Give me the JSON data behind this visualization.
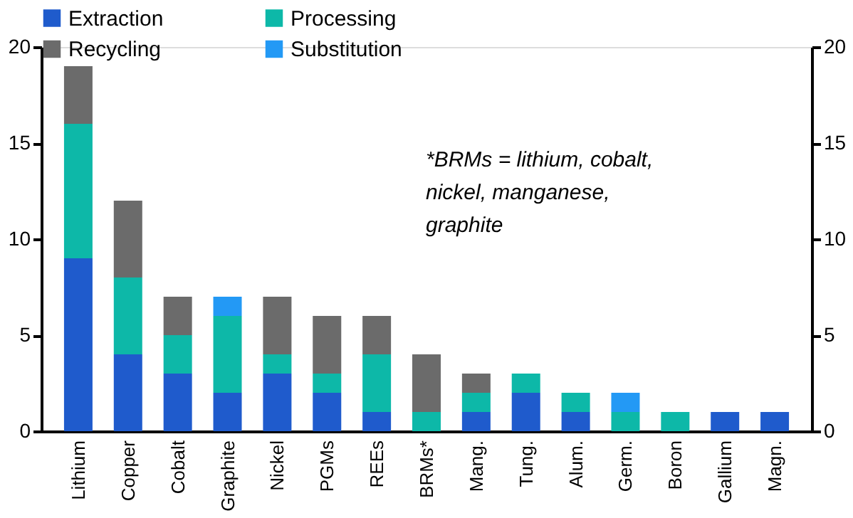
{
  "chart_data": {
    "type": "bar",
    "stacked": true,
    "categories": [
      "Lithium",
      "Copper",
      "Cobalt",
      "Graphite",
      "Nickel",
      "PGMs",
      "REEs",
      "BRMs*",
      "Mang.",
      "Tung.",
      "Alum.",
      "Germ.",
      "Boron",
      "Gallium",
      "Magn."
    ],
    "series": [
      {
        "name": "Extraction",
        "color": "#1f5bcc",
        "values": [
          9,
          4,
          3,
          2,
          3,
          2,
          1,
          null,
          1,
          2,
          1,
          null,
          null,
          1,
          1
        ]
      },
      {
        "name": "Processing",
        "color": "#0db8a8",
        "values": [
          7,
          4,
          2,
          4,
          1,
          1,
          3,
          1,
          1,
          1,
          1,
          1,
          1,
          null,
          null
        ]
      },
      {
        "name": "Recycling",
        "color": "#6b6b6b",
        "values": [
          3,
          4,
          2,
          null,
          3,
          3,
          2,
          3,
          1,
          null,
          null,
          null,
          null,
          null,
          null
        ]
      },
      {
        "name": "Substitution",
        "color": "#2399f5",
        "values": [
          null,
          null,
          null,
          1,
          null,
          null,
          null,
          null,
          null,
          null,
          null,
          1,
          null,
          null,
          null
        ]
      }
    ],
    "ylim": [
      0,
      20
    ],
    "yticks": [
      0,
      5,
      10,
      15,
      20
    ],
    "y2lim": [
      0,
      20
    ],
    "y2ticks": [
      0,
      5,
      10,
      15,
      20
    ],
    "grid": false,
    "legend": "top",
    "annotations": [
      "*BRMs = lithium, cobalt, nickel, manganese, graphite"
    ]
  }
}
